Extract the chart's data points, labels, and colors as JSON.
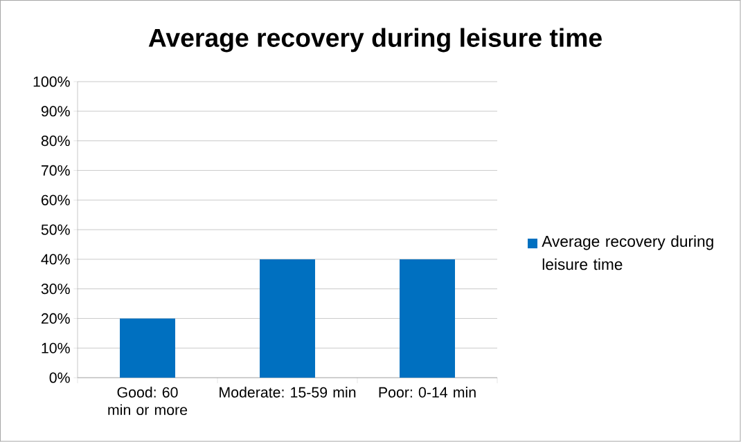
{
  "chart_data": {
    "type": "bar",
    "title": "Average recovery during leisure time",
    "categories": [
      "Good: 60 min or more",
      "Moderate: 15-59 min",
      "Poor: 0-14 min"
    ],
    "series": [
      {
        "name": "Average recovery during leisure time",
        "color": "#0070c0",
        "values": [
          20,
          40,
          40
        ]
      }
    ],
    "ylim": [
      0,
      100
    ],
    "yticks": [
      {
        "value": 0,
        "label": "0%"
      },
      {
        "value": 10,
        "label": "10%"
      },
      {
        "value": 20,
        "label": "20%"
      },
      {
        "value": 30,
        "label": "30%"
      },
      {
        "value": 40,
        "label": "40%"
      },
      {
        "value": 50,
        "label": "50%"
      },
      {
        "value": 60,
        "label": "60%"
      },
      {
        "value": 70,
        "label": "70%"
      },
      {
        "value": 80,
        "label": "80%"
      },
      {
        "value": 90,
        "label": "90%"
      },
      {
        "value": 100,
        "label": "100%"
      }
    ],
    "grid": "y",
    "legend": "right"
  }
}
